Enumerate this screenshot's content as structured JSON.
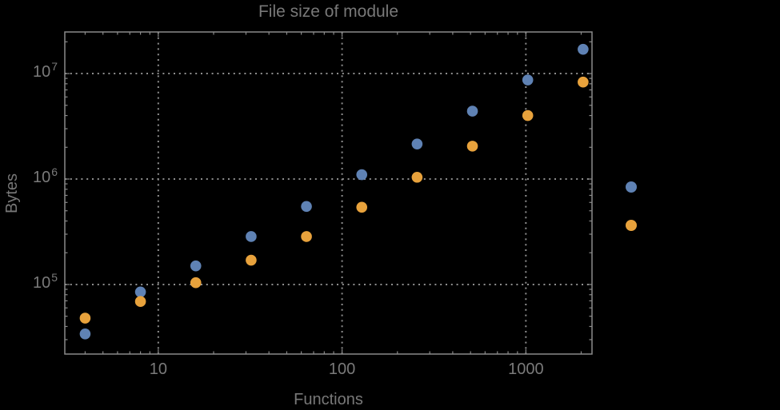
{
  "style": {
    "background": "#000000",
    "text_color": "#787878",
    "frame_color": "#8a8a8a",
    "grid_color": "#8e8e8e"
  },
  "chart_data": {
    "type": "scatter",
    "title": "File size of module",
    "xlabel": "Functions",
    "ylabel": "Bytes",
    "x_scale": "log",
    "y_scale": "log",
    "grid": "dotted",
    "xlim": [
      3.1,
      2290
    ],
    "ylim": [
      21900,
      24800000
    ],
    "x": [
      4,
      8,
      16,
      32,
      64,
      128,
      256,
      512,
      1024,
      2048
    ],
    "series": [
      {
        "name": "series-blue",
        "color": "#5f82b4",
        "values": [
          34000,
          85000,
          150000,
          285000,
          550000,
          1100000,
          2150000,
          4400000,
          8700000,
          17000000
        ]
      },
      {
        "name": "series-orange",
        "color": "#e8a23c",
        "values": [
          48000,
          69000,
          104000,
          170000,
          285000,
          540000,
          1040000,
          2050000,
          4000000,
          8300000
        ]
      }
    ],
    "x_ticks": [
      {
        "value": 10,
        "label": "10"
      },
      {
        "value": 100,
        "label": "100"
      },
      {
        "value": 1000,
        "label": "1000"
      }
    ],
    "y_ticks": [
      {
        "value": 100000,
        "base": "10",
        "exp": "5"
      },
      {
        "value": 1000000,
        "base": "10",
        "exp": "6"
      },
      {
        "value": 10000000,
        "base": "10",
        "exp": "7"
      }
    ],
    "legend": {
      "position": "outside-right",
      "markers": [
        {
          "series": "series-blue",
          "color": "#5f82b4"
        },
        {
          "series": "series-orange",
          "color": "#e8a23c"
        }
      ]
    }
  }
}
